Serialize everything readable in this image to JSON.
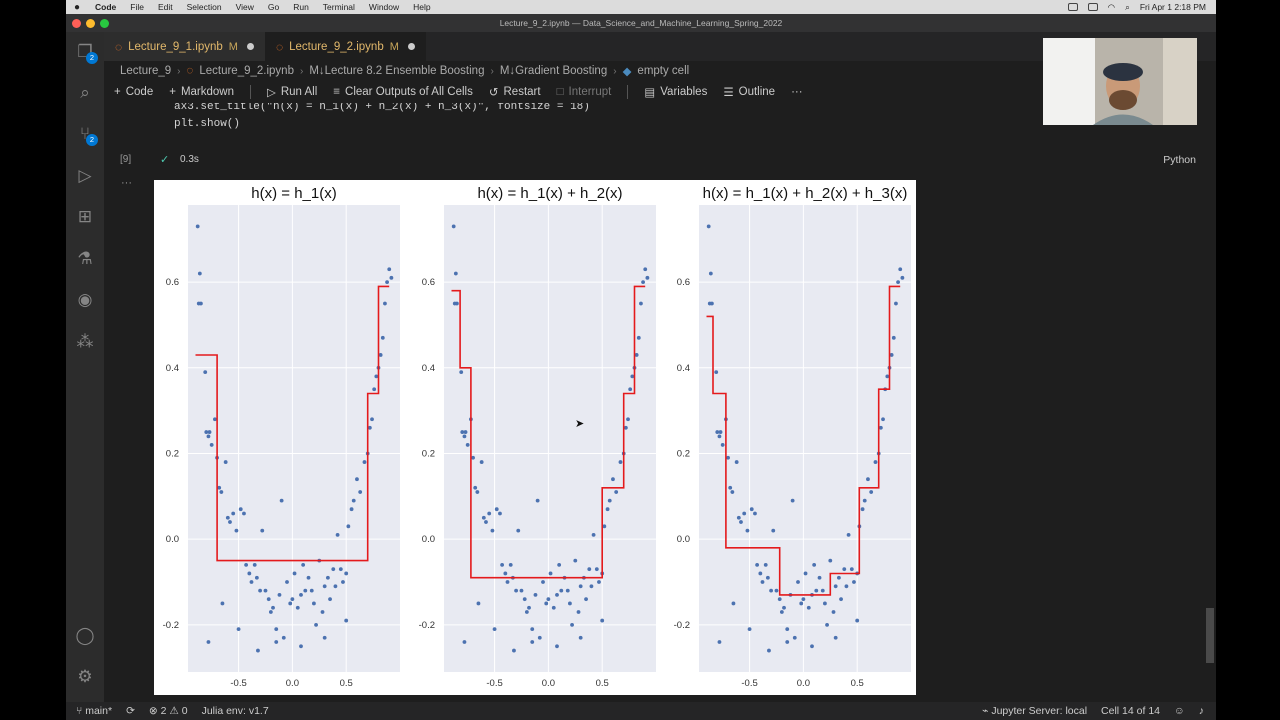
{
  "menubar": {
    "app": "Code",
    "items": [
      "File",
      "Edit",
      "Selection",
      "View",
      "Go",
      "Run",
      "Terminal",
      "Window",
      "Help"
    ],
    "clock": "Fri Apr 1  2:18 PM"
  },
  "window": {
    "title": "Lecture_9_2.ipynb — Data_Science_and_Machine_Learning_Spring_2022"
  },
  "activity": {
    "explorer_badge": "2",
    "scm_badge": "2"
  },
  "tabs": [
    {
      "label": "Lecture_9_1.ipynb",
      "modified": "M"
    },
    {
      "label": "Lecture_9_2.ipynb",
      "modified": "M"
    }
  ],
  "breadcrumb": [
    "Lecture_9",
    "Lecture_9_2.ipynb",
    "M↓Lecture 8.2 Ensemble Boosting",
    "M↓Gradient Boosting",
    "empty cell"
  ],
  "toolbar": {
    "code": "Code",
    "markdown": "Markdown",
    "run_all": "Run All",
    "clear": "Clear Outputs of All Cells",
    "restart": "Restart",
    "interrupt": "Interrupt",
    "variables": "Variables",
    "outline": "Outline",
    "more": "···"
  },
  "cell": {
    "line1": "ax3.set_title(\"h(x) = h_1(x) + h_2(x) + h_3(x)\", fontsize = 18)",
    "line2": "plt.show()",
    "exec_count": "[9]",
    "duration": "0.3s",
    "language": "Python",
    "more": "···"
  },
  "status": {
    "branch": "main*",
    "errors": "2",
    "warnings": "0",
    "env": "Julia env: v1.7",
    "jupyter": "Jupyter Server: local",
    "cell": "Cell 14 of 14"
  },
  "colors": {
    "step_line": "#e41a1c",
    "points": "#4c72b0",
    "panel_bg": "#e8eaf2"
  },
  "chart_data": [
    {
      "type": "scatter",
      "title": "h(x) = h_1(x)",
      "xlabel": "",
      "ylabel": "",
      "x_ticks": [
        "-0.5",
        "0.0",
        "0.5"
      ],
      "y_ticks": [
        "-0.2",
        "0.0",
        "0.2",
        "0.4",
        "0.6"
      ],
      "xlim": [
        -0.97,
        1.0
      ],
      "ylim": [
        -0.31,
        0.78
      ],
      "grid": true,
      "step": [
        [
          -0.9,
          0.43
        ],
        [
          -0.7,
          0.43
        ],
        [
          -0.7,
          -0.05
        ],
        [
          0.7,
          -0.05
        ],
        [
          0.7,
          0.34
        ],
        [
          0.8,
          0.34
        ],
        [
          0.8,
          0.59
        ],
        [
          0.9,
          0.59
        ]
      ]
    },
    {
      "type": "scatter",
      "title": "h(x) = h_1(x) + h_2(x)",
      "xlabel": "",
      "ylabel": "",
      "x_ticks": [
        "-0.5",
        "0.0",
        "0.5"
      ],
      "y_ticks": [
        "-0.2",
        "0.0",
        "0.2",
        "0.4",
        "0.6"
      ],
      "xlim": [
        -0.97,
        1.0
      ],
      "ylim": [
        -0.31,
        0.78
      ],
      "grid": true,
      "step": [
        [
          -0.9,
          0.58
        ],
        [
          -0.82,
          0.58
        ],
        [
          -0.82,
          0.4
        ],
        [
          -0.72,
          0.4
        ],
        [
          -0.72,
          -0.09
        ],
        [
          0.5,
          -0.09
        ],
        [
          0.5,
          0.12
        ],
        [
          0.7,
          0.12
        ],
        [
          0.7,
          0.34
        ],
        [
          0.8,
          0.34
        ],
        [
          0.8,
          0.59
        ],
        [
          0.9,
          0.59
        ]
      ]
    },
    {
      "type": "scatter",
      "title": "h(x) = h_1(x) + h_2(x) + h_3(x)",
      "xlabel": "",
      "ylabel": "",
      "x_ticks": [
        "-0.5",
        "0.0",
        "0.5"
      ],
      "y_ticks": [
        "-0.2",
        "0.0",
        "0.2",
        "0.4",
        "0.6"
      ],
      "xlim": [
        -0.97,
        1.0
      ],
      "ylim": [
        -0.31,
        0.78
      ],
      "grid": true,
      "step": [
        [
          -0.9,
          0.52
        ],
        [
          -0.84,
          0.52
        ],
        [
          -0.84,
          0.34
        ],
        [
          -0.72,
          0.34
        ],
        [
          -0.72,
          -0.02
        ],
        [
          -0.22,
          -0.02
        ],
        [
          -0.22,
          -0.13
        ],
        [
          0.25,
          -0.13
        ],
        [
          0.25,
          -0.08
        ],
        [
          0.52,
          -0.08
        ],
        [
          0.52,
          0.12
        ],
        [
          0.7,
          0.12
        ],
        [
          0.7,
          0.35
        ],
        [
          0.8,
          0.35
        ],
        [
          0.8,
          0.59
        ],
        [
          0.9,
          0.59
        ]
      ]
    }
  ],
  "points": [
    [
      -0.88,
      0.73
    ],
    [
      -0.86,
      0.62
    ],
    [
      -0.87,
      0.55
    ],
    [
      -0.85,
      0.55
    ],
    [
      -0.81,
      0.39
    ],
    [
      -0.8,
      0.25
    ],
    [
      -0.78,
      0.24
    ],
    [
      -0.77,
      0.25
    ],
    [
      -0.75,
      0.22
    ],
    [
      -0.72,
      0.28
    ],
    [
      -0.7,
      0.19
    ],
    [
      -0.68,
      0.12
    ],
    [
      -0.66,
      0.11
    ],
    [
      -0.62,
      0.18
    ],
    [
      -0.6,
      0.05
    ],
    [
      -0.58,
      0.04
    ],
    [
      -0.55,
      0.06
    ],
    [
      -0.52,
      0.02
    ],
    [
      -0.48,
      0.07
    ],
    [
      -0.45,
      0.06
    ],
    [
      -0.43,
      -0.06
    ],
    [
      -0.4,
      -0.08
    ],
    [
      -0.38,
      -0.1
    ],
    [
      -0.35,
      -0.06
    ],
    [
      -0.33,
      -0.09
    ],
    [
      -0.3,
      -0.12
    ],
    [
      -0.28,
      0.02
    ],
    [
      -0.25,
      -0.12
    ],
    [
      -0.22,
      -0.14
    ],
    [
      -0.2,
      -0.17
    ],
    [
      -0.18,
      -0.16
    ],
    [
      -0.15,
      -0.21
    ],
    [
      -0.12,
      -0.13
    ],
    [
      -0.1,
      0.09
    ],
    [
      -0.08,
      -0.23
    ],
    [
      -0.05,
      -0.1
    ],
    [
      -0.02,
      -0.15
    ],
    [
      0.0,
      -0.14
    ],
    [
      0.02,
      -0.08
    ],
    [
      0.05,
      -0.16
    ],
    [
      0.08,
      -0.13
    ],
    [
      0.1,
      -0.06
    ],
    [
      0.12,
      -0.12
    ],
    [
      0.15,
      -0.09
    ],
    [
      0.18,
      -0.12
    ],
    [
      0.2,
      -0.15
    ],
    [
      0.22,
      -0.2
    ],
    [
      0.25,
      -0.05
    ],
    [
      0.28,
      -0.17
    ],
    [
      0.3,
      -0.11
    ],
    [
      0.33,
      -0.09
    ],
    [
      0.35,
      -0.14
    ],
    [
      0.38,
      -0.07
    ],
    [
      0.4,
      -0.11
    ],
    [
      0.42,
      0.01
    ],
    [
      0.45,
      -0.07
    ],
    [
      0.47,
      -0.1
    ],
    [
      0.5,
      -0.08
    ],
    [
      0.52,
      0.03
    ],
    [
      0.55,
      0.07
    ],
    [
      0.57,
      0.09
    ],
    [
      0.6,
      0.14
    ],
    [
      0.63,
      0.11
    ],
    [
      0.67,
      0.18
    ],
    [
      0.7,
      0.2
    ],
    [
      0.72,
      0.26
    ],
    [
      0.74,
      0.28
    ],
    [
      0.76,
      0.35
    ],
    [
      0.78,
      0.38
    ],
    [
      0.8,
      0.4
    ],
    [
      0.82,
      0.43
    ],
    [
      0.84,
      0.47
    ],
    [
      0.86,
      0.55
    ],
    [
      0.88,
      0.6
    ],
    [
      0.9,
      0.63
    ],
    [
      0.92,
      0.61
    ],
    [
      -0.78,
      -0.24
    ],
    [
      -0.65,
      -0.15
    ],
    [
      -0.5,
      -0.21
    ],
    [
      -0.32,
      -0.26
    ],
    [
      -0.15,
      -0.24
    ],
    [
      0.08,
      -0.25
    ],
    [
      0.3,
      -0.23
    ],
    [
      0.5,
      -0.19
    ]
  ]
}
